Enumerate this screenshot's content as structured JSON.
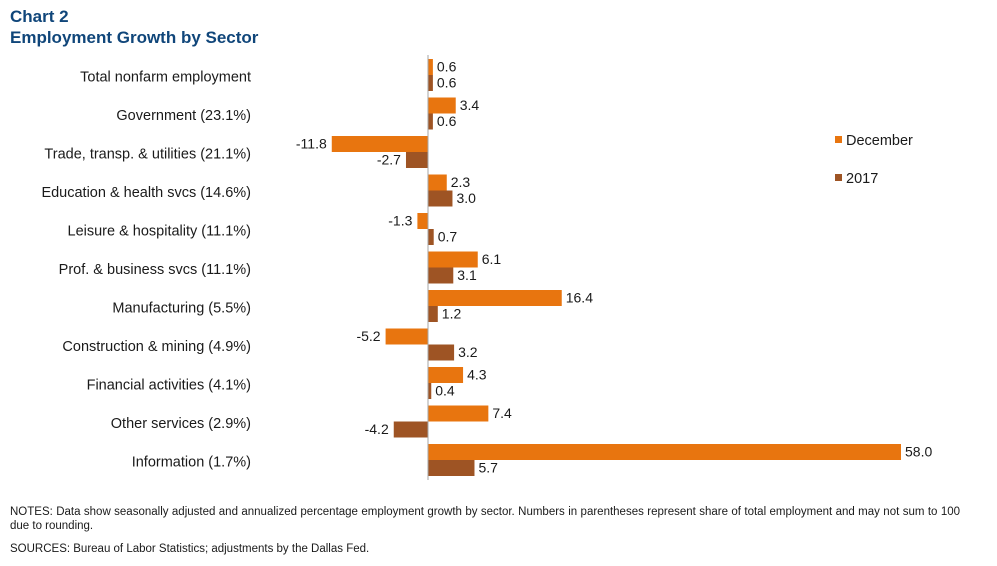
{
  "header": {
    "chart_number": "Chart 2",
    "title": "Employment Growth by Sector"
  },
  "colors": {
    "december": "#e8750f",
    "year2017": "#9e5424",
    "title": "#10467a",
    "axis": "#a6a6a6"
  },
  "chart_data": {
    "type": "bar",
    "orientation": "horizontal",
    "categories": [
      "Total nonfarm employment",
      "Government (23.1%)",
      "Trade, transp. & utilities (21.1%)",
      "Education & health svcs (14.6%)",
      "Leisure & hospitality (11.1%)",
      "Prof. & business svcs (11.1%)",
      "Manufacturing (5.5%)",
      "Construction & mining (4.9%)",
      "Financial activities (4.1%)",
      "Other services (2.9%)",
      "Information (1.7%)"
    ],
    "series": [
      {
        "name": "December",
        "color": "#e8750f",
        "values": [
          0.6,
          3.4,
          -11.8,
          2.3,
          -1.3,
          6.1,
          16.4,
          -5.2,
          4.3,
          7.4,
          58.0
        ],
        "labels": [
          "0.6",
          "3.4",
          "-11.8",
          "2.3",
          "-1.3",
          "6.1",
          "16.4",
          "-5.2",
          "4.3",
          "7.4",
          "58.0"
        ]
      },
      {
        "name": "2017",
        "color": "#9e5424",
        "values": [
          0.6,
          0.6,
          -2.7,
          3.0,
          0.7,
          3.1,
          1.2,
          3.2,
          0.4,
          -4.2,
          5.7
        ],
        "labels": [
          "0.6",
          "0.6",
          "-2.7",
          "3.0",
          "0.7",
          "3.1",
          "1.2",
          "3.2",
          "0.4",
          "-4.2",
          "5.7"
        ]
      }
    ],
    "xlim": [
      -11.8,
      58.0
    ],
    "legend_position": "right",
    "grid": false
  },
  "footer": {
    "notes": "NOTES: Data show seasonally adjusted and annualized percentage employment growth by sector. Numbers in parentheses represent share of total employment and may not sum to 100 due to rounding.",
    "sources": "SOURCES: Bureau of Labor Statistics; adjustments by the Dallas Fed."
  }
}
